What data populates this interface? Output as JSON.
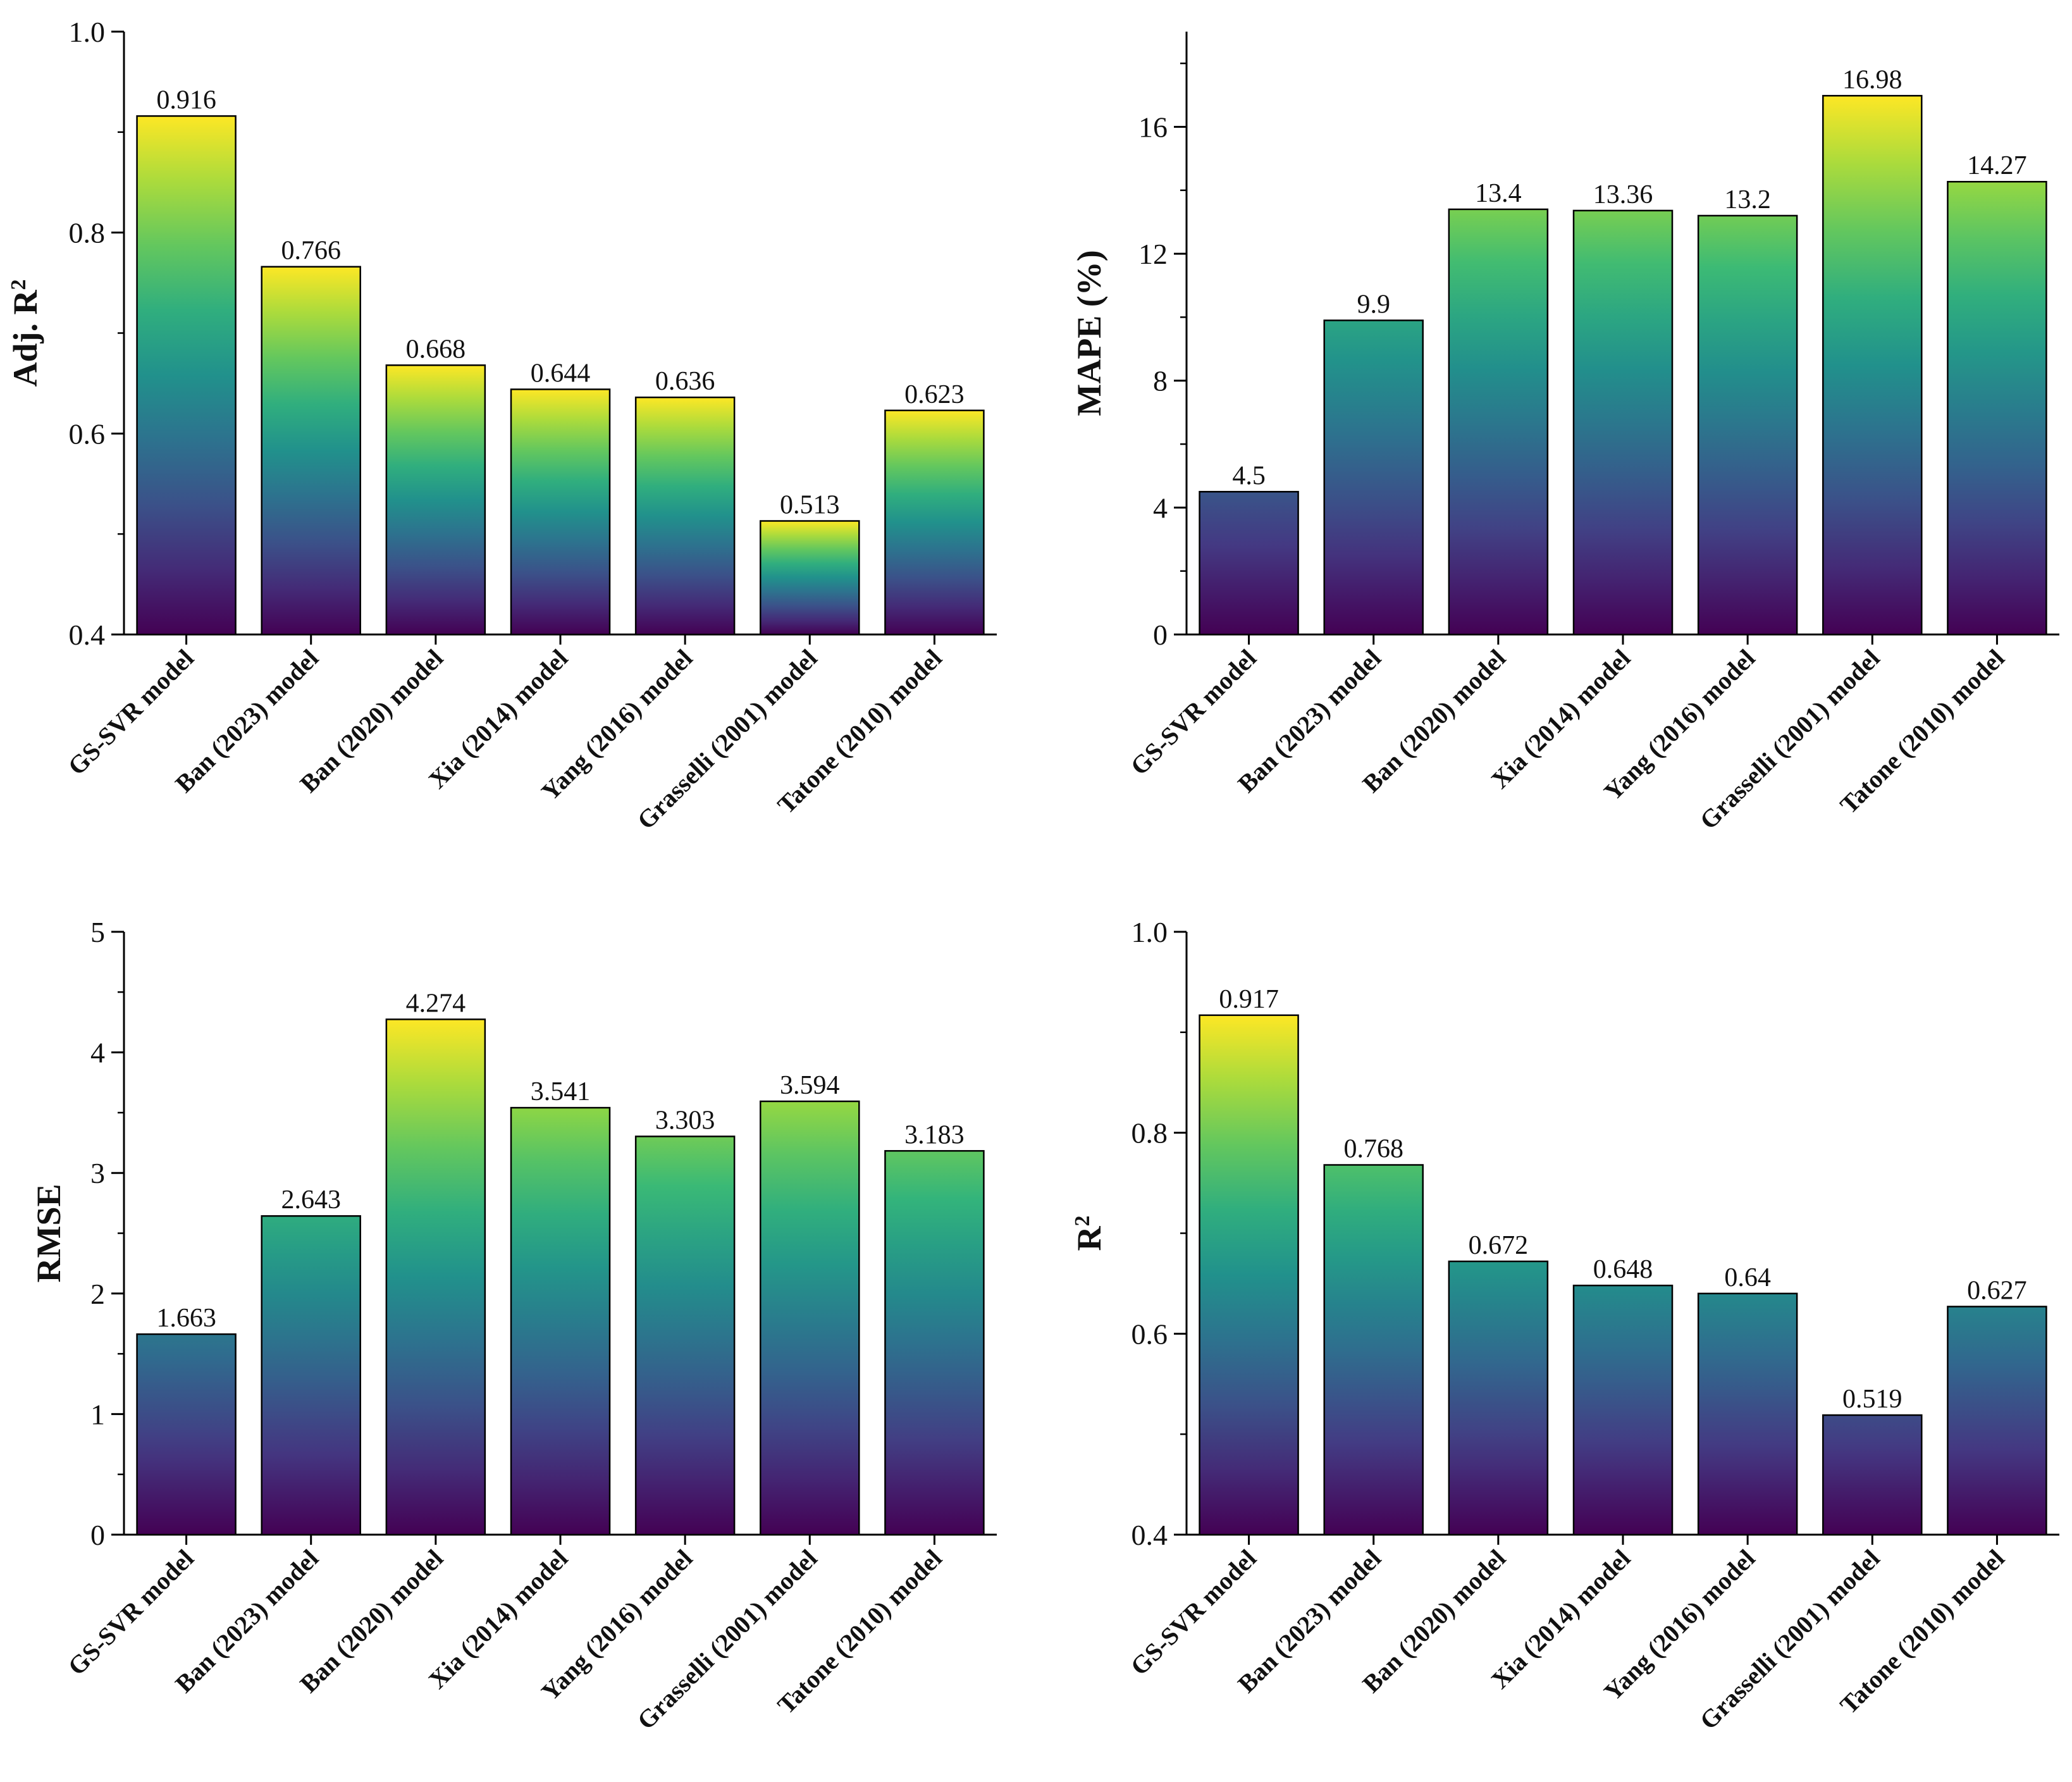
{
  "chart_data": [
    {
      "type": "bar",
      "categories": [
        "GS-SVR model",
        "Ban (2023) model",
        "Ban (2020) model",
        "Xia (2014) model",
        "Yang (2016) model",
        "Grasselli (2001) model",
        "Tatone (2010) model"
      ],
      "values": [
        0.916,
        0.766,
        0.668,
        0.644,
        0.636,
        0.513,
        0.623
      ],
      "value_labels": [
        "0.916",
        "0.766",
        "0.668",
        "0.644",
        "0.636",
        "0.513",
        "0.623"
      ],
      "title": "",
      "xlabel": "",
      "ylabel": "Adj. R",
      "ylabel_sup": "2",
      "ylim": [
        0.4,
        1.0
      ],
      "yticks": [
        0.4,
        0.6,
        0.8,
        1.0
      ],
      "ytick_labels": [
        "0.4",
        "0.6",
        "0.8",
        "1.0"
      ],
      "minor_tick_step": 0.1,
      "colormap": "viridis-per-bar",
      "grid": false
    },
    {
      "type": "bar",
      "categories": [
        "GS-SVR model",
        "Ban (2023) model",
        "Ban (2020) model",
        "Xia (2014) model",
        "Yang (2016) model",
        "Grasselli (2001) model",
        "Tatone (2010) model"
      ],
      "values": [
        4.5,
        9.9,
        13.4,
        13.36,
        13.2,
        16.98,
        14.27
      ],
      "value_labels": [
        "4.5",
        "9.9",
        "13.4",
        "13.36",
        "13.2",
        "16.98",
        "14.27"
      ],
      "title": "",
      "xlabel": "",
      "ylabel": "MAPE (%)",
      "ylabel_sup": "",
      "ylim": [
        0,
        19
      ],
      "yticks": [
        0,
        4,
        8,
        12,
        16
      ],
      "ytick_labels": [
        "0",
        "4",
        "8",
        "12",
        "16"
      ],
      "minor_tick_step": 2,
      "colormap": "viridis-shared",
      "grid": false
    },
    {
      "type": "bar",
      "categories": [
        "GS-SVR model",
        "Ban (2023) model",
        "Ban (2020) model",
        "Xia (2014) model",
        "Yang (2016) model",
        "Grasselli (2001) model",
        "Tatone (2010) model"
      ],
      "values": [
        1.663,
        2.643,
        4.274,
        3.541,
        3.303,
        3.594,
        3.183
      ],
      "value_labels": [
        "1.663",
        "2.643",
        "4.274",
        "3.541",
        "3.303",
        "3.594",
        "3.183"
      ],
      "title": "",
      "xlabel": "",
      "ylabel": "RMSE",
      "ylabel_sup": "",
      "ylim": [
        0,
        5
      ],
      "yticks": [
        0,
        1,
        2,
        3,
        4,
        5
      ],
      "ytick_labels": [
        "0",
        "1",
        "2",
        "3",
        "4",
        "5"
      ],
      "minor_tick_step": 0.5,
      "colormap": "viridis-shared",
      "grid": false
    },
    {
      "type": "bar",
      "categories": [
        "GS-SVR model",
        "Ban (2023) model",
        "Ban (2020) model",
        "Xia (2014) model",
        "Yang (2016) model",
        "Grasselli (2001) model",
        "Tatone (2010) model"
      ],
      "values": [
        0.917,
        0.768,
        0.672,
        0.648,
        0.64,
        0.519,
        0.627
      ],
      "value_labels": [
        "0.917",
        "0.768",
        "0.672",
        "0.648",
        "0.64",
        "0.519",
        "0.627"
      ],
      "title": "",
      "xlabel": "",
      "ylabel": "R",
      "ylabel_sup": "2",
      "ylim": [
        0.4,
        1.0
      ],
      "yticks": [
        0.4,
        0.6,
        0.8,
        1.0
      ],
      "ytick_labels": [
        "0.4",
        "0.6",
        "0.8",
        "1.0"
      ],
      "minor_tick_step": 0.1,
      "colormap": "viridis-shared",
      "grid": false
    }
  ],
  "colors": {
    "viridis_stops": [
      "#440154",
      "#443983",
      "#31688e",
      "#21918c",
      "#35b779",
      "#90d743",
      "#fde725"
    ],
    "axis": "#000000",
    "bar_edge": "#000000"
  }
}
